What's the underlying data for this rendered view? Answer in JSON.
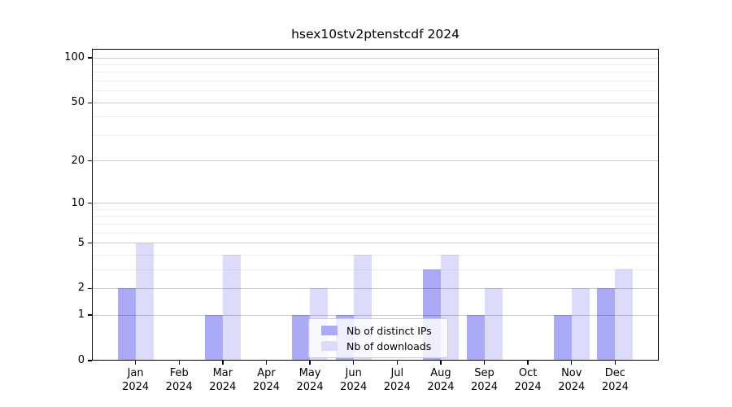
{
  "chart_data": {
    "type": "bar",
    "title": "hsex10stv2ptenstcdf 2024",
    "x_year": "2024",
    "categories": [
      "Jan",
      "Feb",
      "Mar",
      "Apr",
      "May",
      "Jun",
      "Jul",
      "Aug",
      "Sep",
      "Oct",
      "Nov",
      "Dec"
    ],
    "series": [
      {
        "name": "Nb of distinct IPs",
        "color": "#aaaaf7",
        "values": [
          2,
          0,
          1,
          0,
          1,
          1,
          0,
          3,
          1,
          0,
          1,
          2
        ]
      },
      {
        "name": "Nb of downloads",
        "color": "#dcdcfa",
        "values": [
          5,
          0,
          4,
          0,
          2,
          4,
          0,
          4,
          2,
          0,
          2,
          3
        ]
      }
    ],
    "yscale": "log1p",
    "ylim": [
      0,
      115
    ],
    "yticks_major": [
      0,
      1,
      2,
      5,
      10,
      20,
      50,
      100
    ],
    "yticks_minor": [
      3,
      4,
      6,
      7,
      8,
      9,
      30,
      40,
      60,
      70,
      80,
      90
    ],
    "grid": "horizontal",
    "legend_position": "lower-center-inside",
    "axis_color": "#000000",
    "background_color": "#ffffff"
  }
}
